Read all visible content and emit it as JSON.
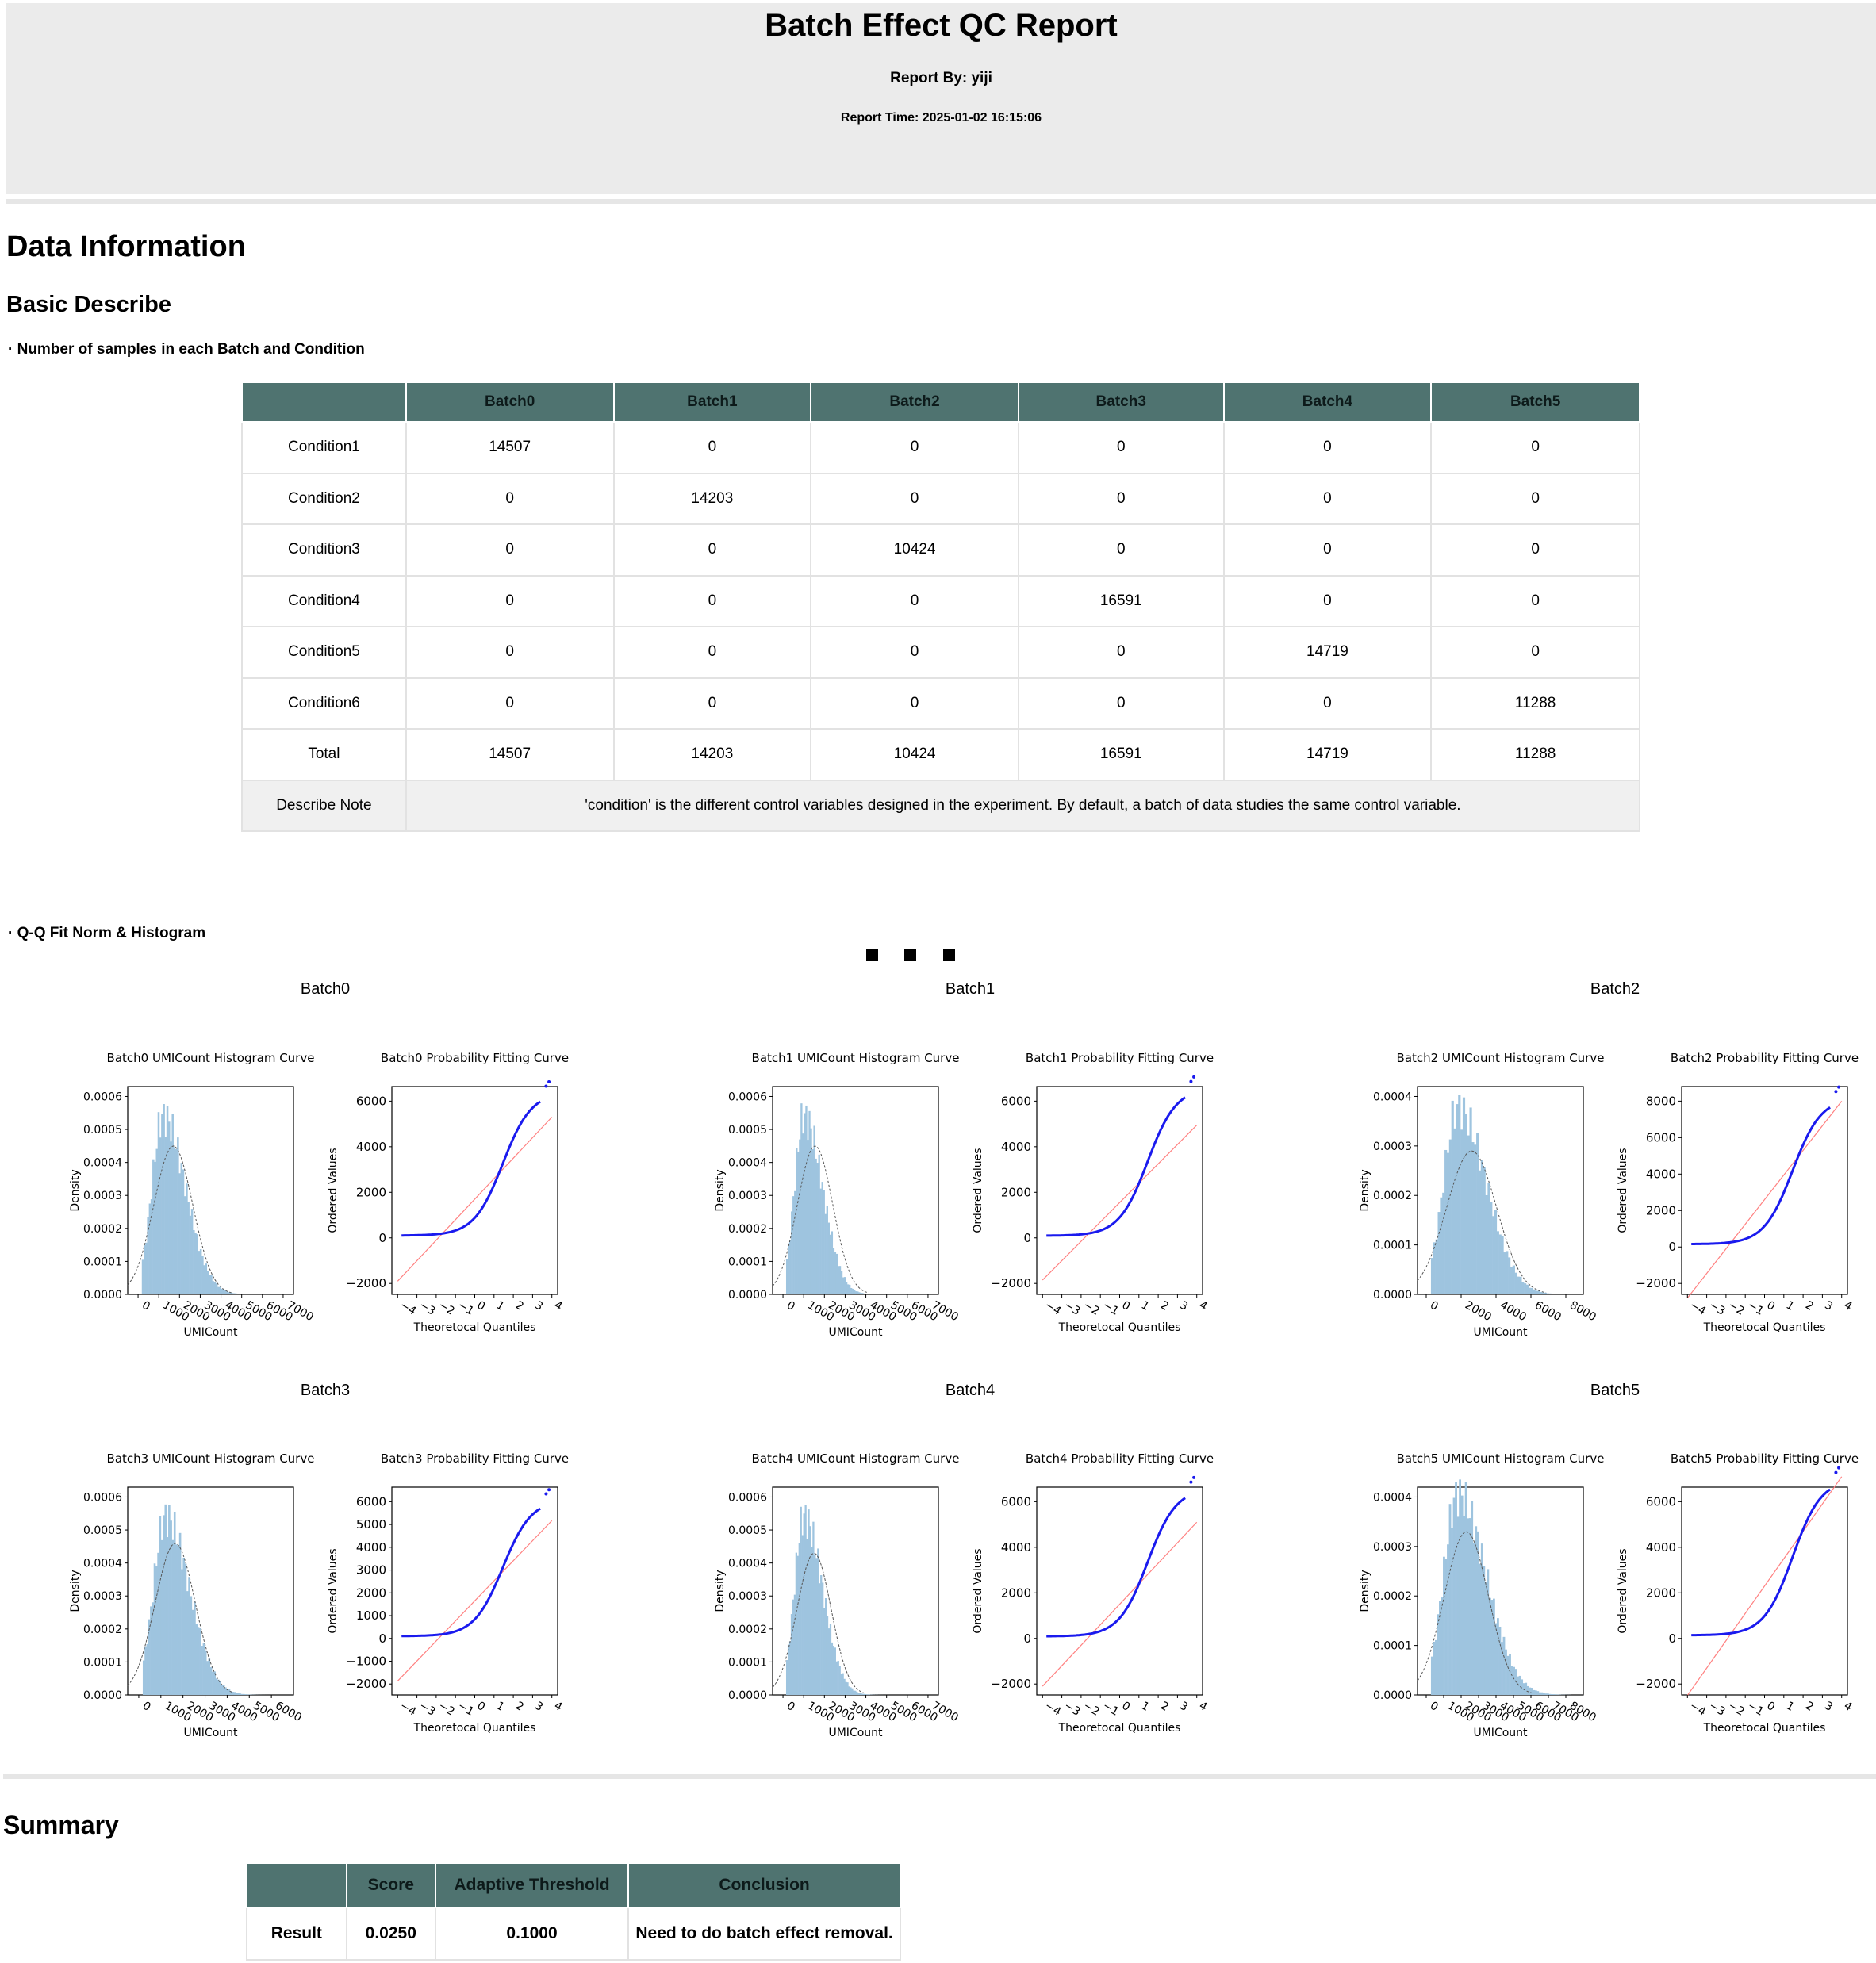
{
  "header": {
    "title": "Batch Effect QC Report",
    "report_by": "Report By: yiji",
    "report_time": "Report Time: 2025-01-02 16:15:06"
  },
  "data_information": {
    "heading": "Data Information",
    "subheading": "Basic Describe",
    "samples_bullet": "· Number of samples in each Batch and Condition",
    "table": {
      "columns": [
        "",
        "Batch0",
        "Batch1",
        "Batch2",
        "Batch3",
        "Batch4",
        "Batch5"
      ],
      "rows": [
        [
          "Condition1",
          "14507",
          "0",
          "0",
          "0",
          "0",
          "0"
        ],
        [
          "Condition2",
          "0",
          "14203",
          "0",
          "0",
          "0",
          "0"
        ],
        [
          "Condition3",
          "0",
          "0",
          "10424",
          "0",
          "0",
          "0"
        ],
        [
          "Condition4",
          "0",
          "0",
          "0",
          "16591",
          "0",
          "0"
        ],
        [
          "Condition5",
          "0",
          "0",
          "0",
          "0",
          "14719",
          "0"
        ],
        [
          "Condition6",
          "0",
          "0",
          "0",
          "0",
          "0",
          "11288"
        ],
        [
          "Total",
          "14507",
          "14203",
          "10424",
          "16591",
          "14719",
          "11288"
        ]
      ],
      "note_label": "Describe Note",
      "note_text": "'condition' is the different control variables designed in the experiment. By default, a batch of data studies the same control variable."
    },
    "qq_bullet": "· Q-Q Fit Norm & Histogram"
  },
  "chart_data": [
    {
      "type": "bar",
      "batch": "Batch0",
      "title": "Batch0 UMICount Histogram Curve",
      "xlabel": "UMICount",
      "ylabel": "Density",
      "ylim": [
        0,
        0.0006
      ],
      "yticks": [
        "0.0000",
        "0.0001",
        "0.0002",
        "0.0003",
        "0.0004",
        "0.0005",
        "0.0006"
      ],
      "xlim": [
        -500,
        7500
      ],
      "xticks": [
        "0",
        "1000",
        "2000",
        "3000",
        "4000",
        "5000",
        "6000",
        "7000"
      ],
      "peak_x": 1200,
      "peak_y": 0.0006,
      "normal_mean": 1700,
      "normal_peak": 0.00045
    },
    {
      "type": "scatter",
      "batch": "Batch0",
      "title": "Batch0 Probability Fitting Curve",
      "xlabel": "Theoretocal Quantiles",
      "ylabel": "Ordered Values",
      "xlim": [
        -4,
        4
      ],
      "ylim": [
        -2000,
        6000
      ],
      "yticks": [
        "−2000",
        "0",
        "2000",
        "4000",
        "6000"
      ],
      "xticks": [
        "−4",
        "−3",
        "−2",
        "−1",
        "0",
        "1",
        "2",
        "3",
        "4"
      ],
      "mean": 1700,
      "sd": 900,
      "curve_max": 6400
    },
    {
      "type": "bar",
      "batch": "Batch1",
      "title": "Batch1 UMICount Histogram Curve",
      "xlabel": "UMICount",
      "ylabel": "Density",
      "ylim": [
        0,
        0.0006
      ],
      "yticks": [
        "0.0000",
        "0.0001",
        "0.0002",
        "0.0003",
        "0.0004",
        "0.0005",
        "0.0006"
      ],
      "xlim": [
        -500,
        7500
      ],
      "xticks": [
        "0",
        "1000",
        "2000",
        "3000",
        "4000",
        "5000",
        "6000",
        "7000"
      ],
      "peak_x": 1000,
      "peak_y": 0.0006,
      "normal_mean": 1550,
      "normal_peak": 0.00045
    },
    {
      "type": "scatter",
      "batch": "Batch1",
      "title": "Batch1 Probability Fitting Curve",
      "xlabel": "Theoretocal Quantiles",
      "ylabel": "Ordered Values",
      "xlim": [
        -4,
        4
      ],
      "ylim": [
        -2000,
        6000
      ],
      "yticks": [
        "−2000",
        "0",
        "2000",
        "4000",
        "6000"
      ],
      "xticks": [
        "−4",
        "−3",
        "−2",
        "−1",
        "0",
        "1",
        "2",
        "3",
        "4"
      ],
      "mean": 1550,
      "sd": 850,
      "curve_max": 6600
    },
    {
      "type": "bar",
      "batch": "Batch2",
      "title": "Batch2 UMICount Histogram Curve",
      "xlabel": "UMICount",
      "ylabel": "Density",
      "ylim": [
        0,
        0.0004
      ],
      "yticks": [
        "0.0000",
        "0.0001",
        "0.0002",
        "0.0003",
        "0.0004"
      ],
      "xlim": [
        -500,
        9000
      ],
      "xticks": [
        "0",
        "2000",
        "4000",
        "6000",
        "8000"
      ],
      "peak_x": 1800,
      "peak_y": 0.00042,
      "normal_mean": 2600,
      "normal_peak": 0.00029
    },
    {
      "type": "scatter",
      "batch": "Batch2",
      "title": "Batch2 Probability Fitting Curve",
      "xlabel": "Theoretocal Quantiles",
      "ylabel": "Ordered Values",
      "xlim": [
        -4,
        4
      ],
      "ylim": [
        -2000,
        8000
      ],
      "yticks": [
        "−2000",
        "0",
        "2000",
        "4000",
        "6000",
        "8000"
      ],
      "xticks": [
        "−4",
        "−3",
        "−2",
        "−1",
        "0",
        "1",
        "2",
        "3",
        "4"
      ],
      "mean": 2600,
      "sd": 1350,
      "curve_max": 8200
    },
    {
      "type": "bar",
      "batch": "Batch3",
      "title": "Batch3 UMICount Histogram Curve",
      "xlabel": "UMICount",
      "ylabel": "Density",
      "ylim": [
        0,
        0.0006
      ],
      "yticks": [
        "0.0000",
        "0.0001",
        "0.0002",
        "0.0003",
        "0.0004",
        "0.0005",
        "0.0006"
      ],
      "xlim": [
        -500,
        7000
      ],
      "xticks": [
        "0",
        "1000",
        "2000",
        "3000",
        "4000",
        "5000",
        "6000"
      ],
      "peak_x": 1200,
      "peak_y": 0.0006,
      "normal_mean": 1650,
      "normal_peak": 0.00046
    },
    {
      "type": "scatter",
      "batch": "Batch3",
      "title": "Batch3 Probability Fitting Curve",
      "xlabel": "Theoretocal Quantiles",
      "ylabel": "Ordered Values",
      "xlim": [
        -4,
        4
      ],
      "ylim": [
        -2000,
        6000
      ],
      "yticks": [
        "−2000",
        "−1000",
        "0",
        "1000",
        "2000",
        "3000",
        "4000",
        "5000",
        "6000"
      ],
      "xticks": [
        "−4",
        "−3",
        "−2",
        "−1",
        "0",
        "1",
        "2",
        "3",
        "4"
      ],
      "mean": 1650,
      "sd": 880,
      "curve_max": 6100
    },
    {
      "type": "bar",
      "batch": "Batch4",
      "title": "Batch4 UMICount Histogram Curve",
      "xlabel": "UMICount",
      "ylabel": "Density",
      "ylim": [
        0,
        0.0006
      ],
      "yticks": [
        "0.0000",
        "0.0001",
        "0.0002",
        "0.0003",
        "0.0004",
        "0.0005",
        "0.0006"
      ],
      "xlim": [
        -500,
        7500
      ],
      "xticks": [
        "0",
        "1000",
        "2000",
        "3000",
        "4000",
        "5000",
        "6000",
        "7000"
      ],
      "peak_x": 1000,
      "peak_y": 0.0006,
      "normal_mean": 1500,
      "normal_peak": 0.00043
    },
    {
      "type": "scatter",
      "batch": "Batch4",
      "title": "Batch4 Probability Fitting Curve",
      "xlabel": "Theoretocal Quantiles",
      "ylabel": "Ordered Values",
      "xlim": [
        -4,
        4
      ],
      "ylim": [
        -2000,
        6000
      ],
      "yticks": [
        "−2000",
        "0",
        "2000",
        "4000",
        "6000"
      ],
      "xticks": [
        "−4",
        "−3",
        "−2",
        "−1",
        "0",
        "1",
        "2",
        "3",
        "4"
      ],
      "mean": 1500,
      "sd": 900,
      "curve_max": 6600
    },
    {
      "type": "bar",
      "batch": "Batch5",
      "title": "Batch5 UMICount Histogram Curve",
      "xlabel": "UMICount",
      "ylabel": "Density",
      "ylim": [
        0,
        0.0004
      ],
      "yticks": [
        "0.0000",
        "0.0001",
        "0.0002",
        "0.0003",
        "0.0004"
      ],
      "xlim": [
        -500,
        9000
      ],
      "xticks": [
        "0",
        "1000",
        "2000",
        "3000",
        "4000",
        "5000",
        "6000",
        "7000",
        "8000"
      ],
      "peak_x": 1800,
      "peak_y": 0.00045,
      "normal_mean": 2300,
      "normal_peak": 0.00033
    },
    {
      "type": "scatter",
      "batch": "Batch5",
      "title": "Batch5 Probability Fitting Curve",
      "xlabel": "Theoretocal Quantiles",
      "ylabel": "Ordered Values",
      "xlim": [
        -4,
        4
      ],
      "ylim": [
        -2000,
        6000
      ],
      "yticks": [
        "−2000",
        "0",
        "2000",
        "4000",
        "6000"
      ],
      "xticks": [
        "−4",
        "−3",
        "−2",
        "−1",
        "0",
        "1",
        "2",
        "3",
        "4"
      ],
      "mean": 2300,
      "sd": 1200,
      "curve_max": 7000
    }
  ],
  "summary": {
    "heading": "Summary",
    "columns": [
      "",
      "Score",
      "Adaptive Threshold",
      "Conclusion"
    ],
    "row": [
      "Result",
      "0.0250",
      "0.1000",
      "Need to do batch effect removal."
    ]
  },
  "colors": {
    "table_header": "#4f7370",
    "histogram_bar": "#9ec4df",
    "qq_points": "#1a1aee",
    "qq_line": "#ff8080"
  }
}
